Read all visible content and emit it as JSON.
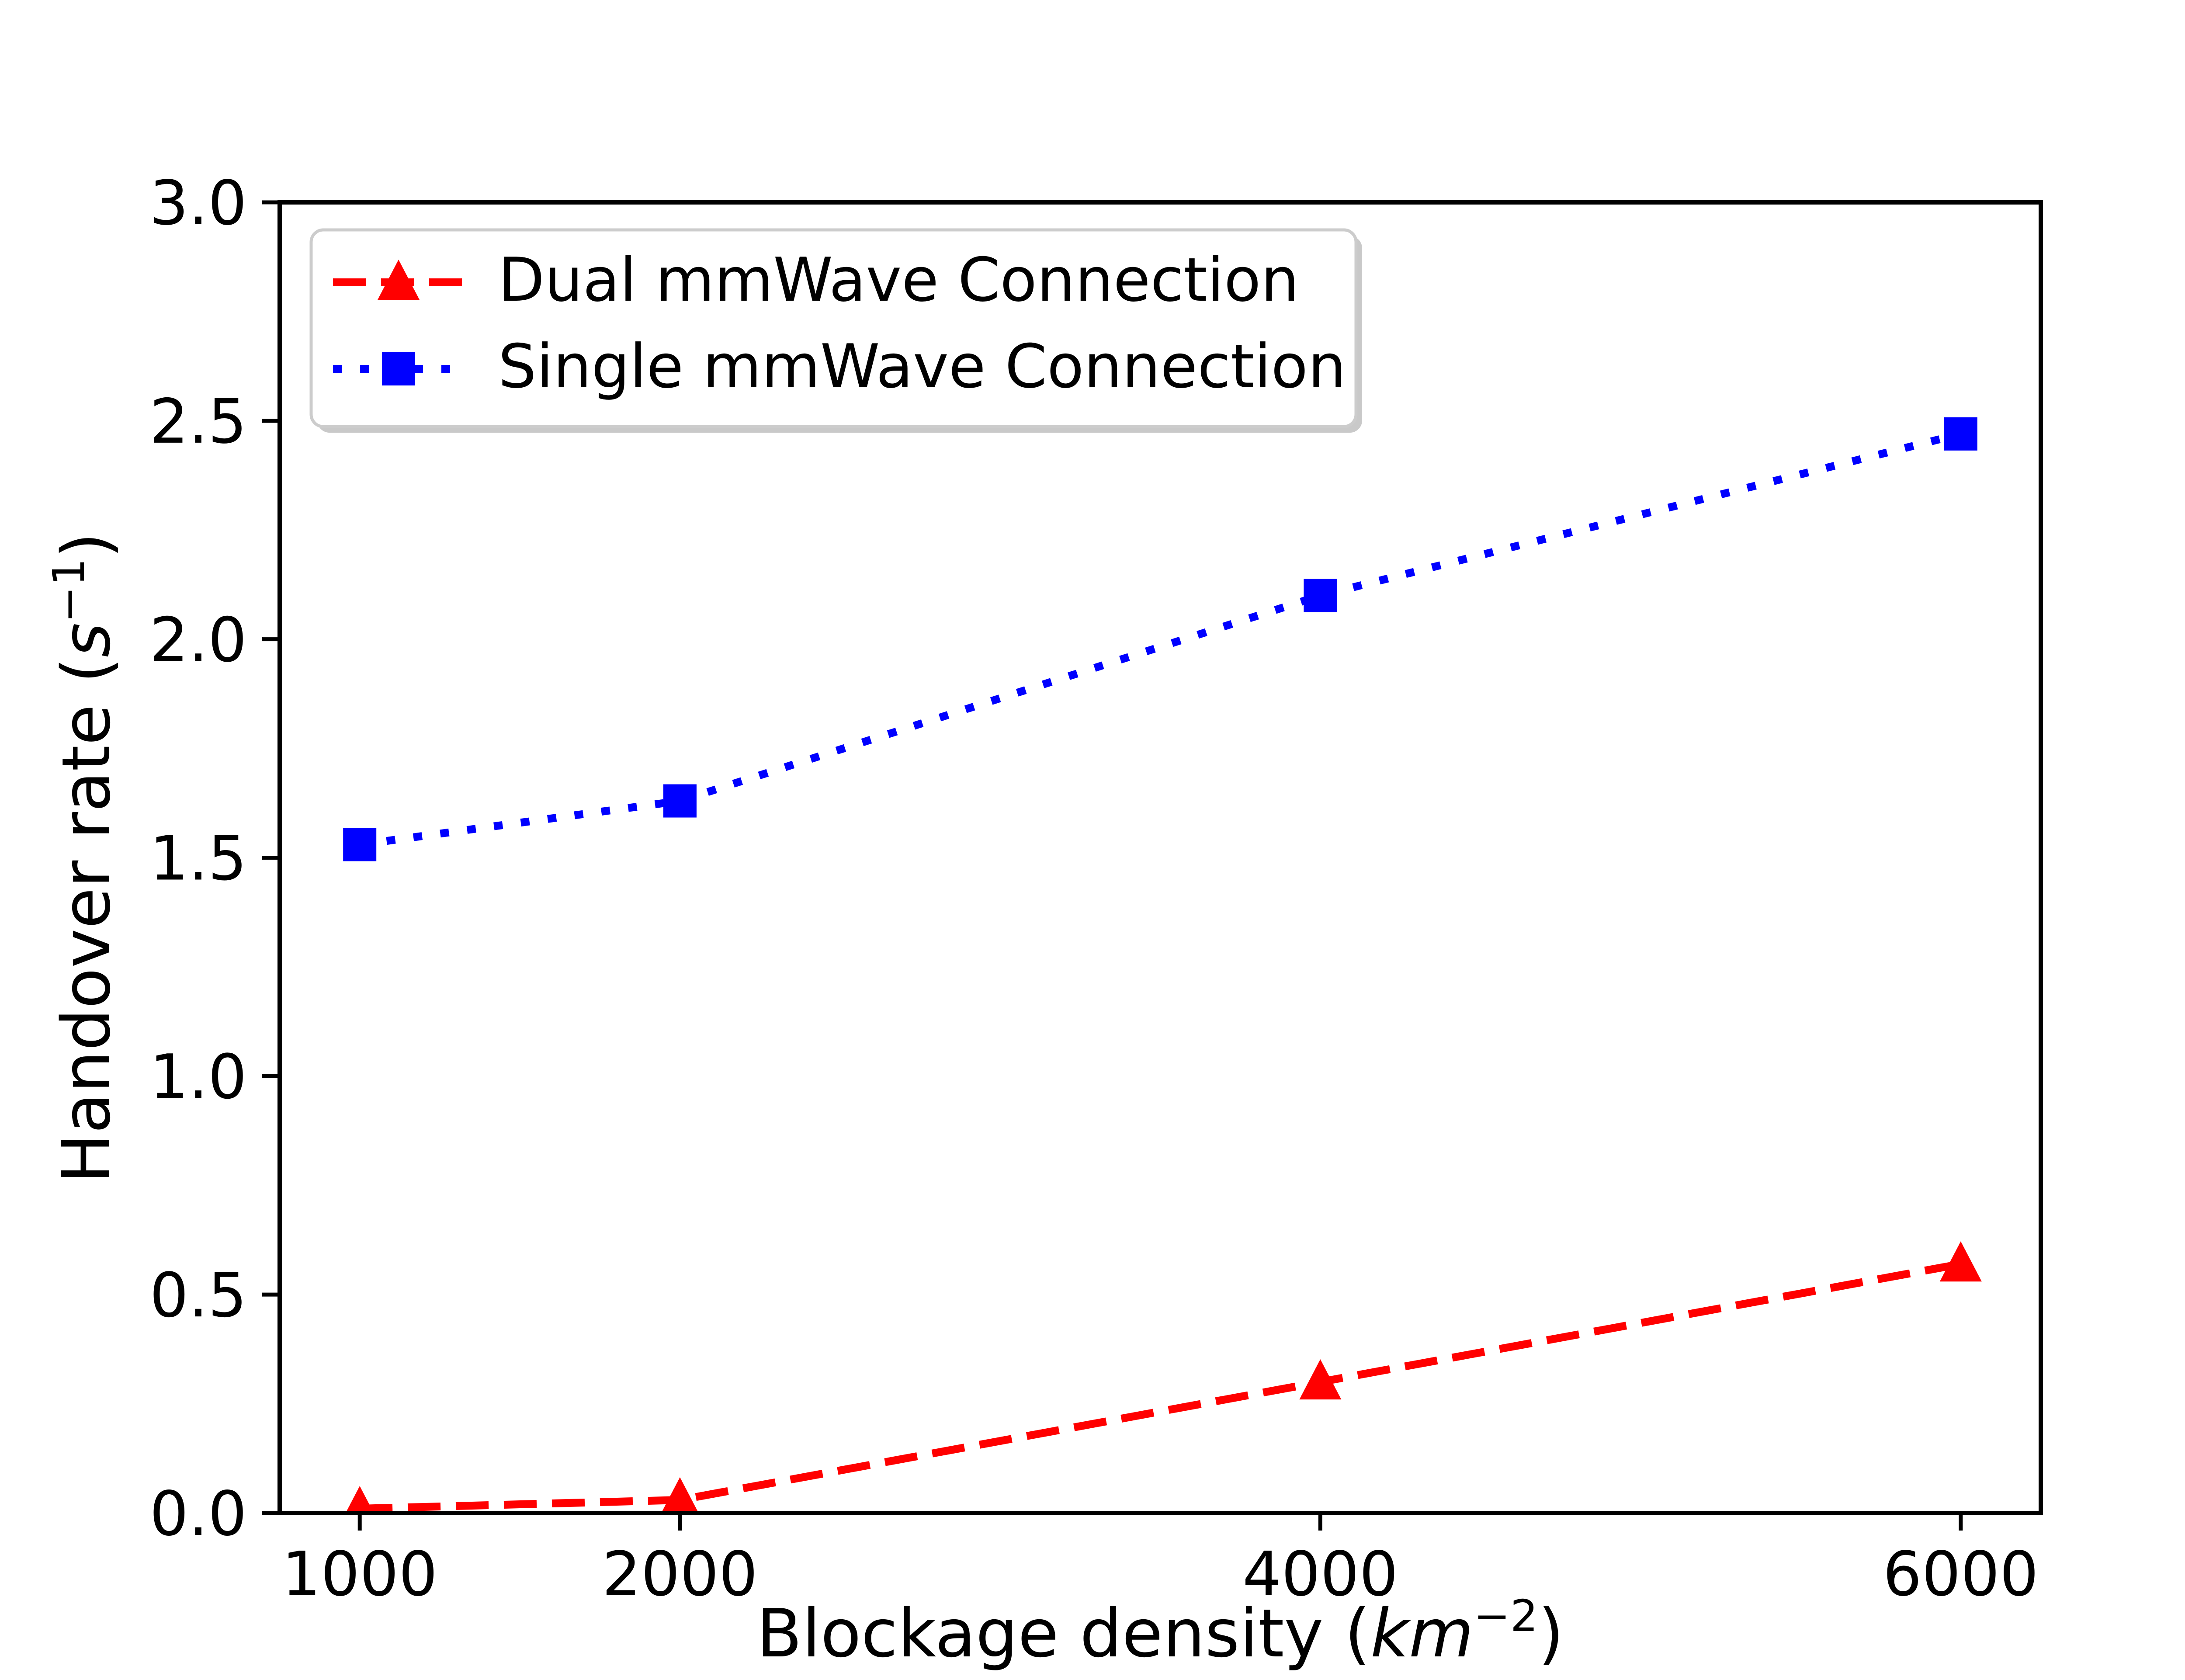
{
  "figure": {
    "background": "#ffffff",
    "text_color": "#000000"
  },
  "axes": {
    "xlabel": {
      "prefix": "Blockage density (",
      "unit_italic": "km",
      "superscript": "−2",
      "suffix": ")"
    },
    "ylabel": {
      "prefix": "Handover rate (",
      "unit_italic": "s",
      "superscript": "−1",
      "suffix": ")"
    },
    "x_ticks": [
      {
        "value": 1000,
        "label": "1000"
      },
      {
        "value": 2000,
        "label": "2000"
      },
      {
        "value": 4000,
        "label": "4000"
      },
      {
        "value": 6000,
        "label": "6000"
      }
    ],
    "y_ticks": [
      {
        "value": 0.0,
        "label": "0.0"
      },
      {
        "value": 0.5,
        "label": "0.5"
      },
      {
        "value": 1.0,
        "label": "1.0"
      },
      {
        "value": 1.5,
        "label": "1.5"
      },
      {
        "value": 2.0,
        "label": "2.0"
      },
      {
        "value": 2.5,
        "label": "2.5"
      },
      {
        "value": 3.0,
        "label": "3.0"
      }
    ]
  },
  "legend": {
    "entries": [
      {
        "label": "Dual mmWave Connection",
        "color": "#ff0000",
        "marker": "triangle",
        "linestyle": "dashed"
      },
      {
        "label": "Single mmWave Connection",
        "color": "#0000ff",
        "marker": "square",
        "linestyle": "dotted"
      }
    ],
    "border_color": "#cccccc",
    "shadow_color": "#c9c9c9",
    "background": "#ffffff"
  },
  "chart_data": {
    "type": "line",
    "x": [
      1000,
      2000,
      4000,
      6000
    ],
    "series": [
      {
        "name": "Dual mmWave Connection",
        "values": [
          0.01,
          0.03,
          0.3,
          0.57
        ],
        "color": "#ff0000",
        "marker": "triangle",
        "linestyle": "dashed"
      },
      {
        "name": "Single mmWave Connection",
        "values": [
          1.53,
          1.63,
          2.1,
          2.47
        ],
        "color": "#0000ff",
        "marker": "square",
        "linestyle": "dotted"
      }
    ],
    "title": "",
    "xlabel": "Blockage density (km⁻²)",
    "ylabel": "Handover rate (s⁻¹)",
    "xlim": [
      750,
      6250
    ],
    "ylim": [
      0,
      3
    ],
    "grid": false,
    "legend_position": "upper left"
  }
}
